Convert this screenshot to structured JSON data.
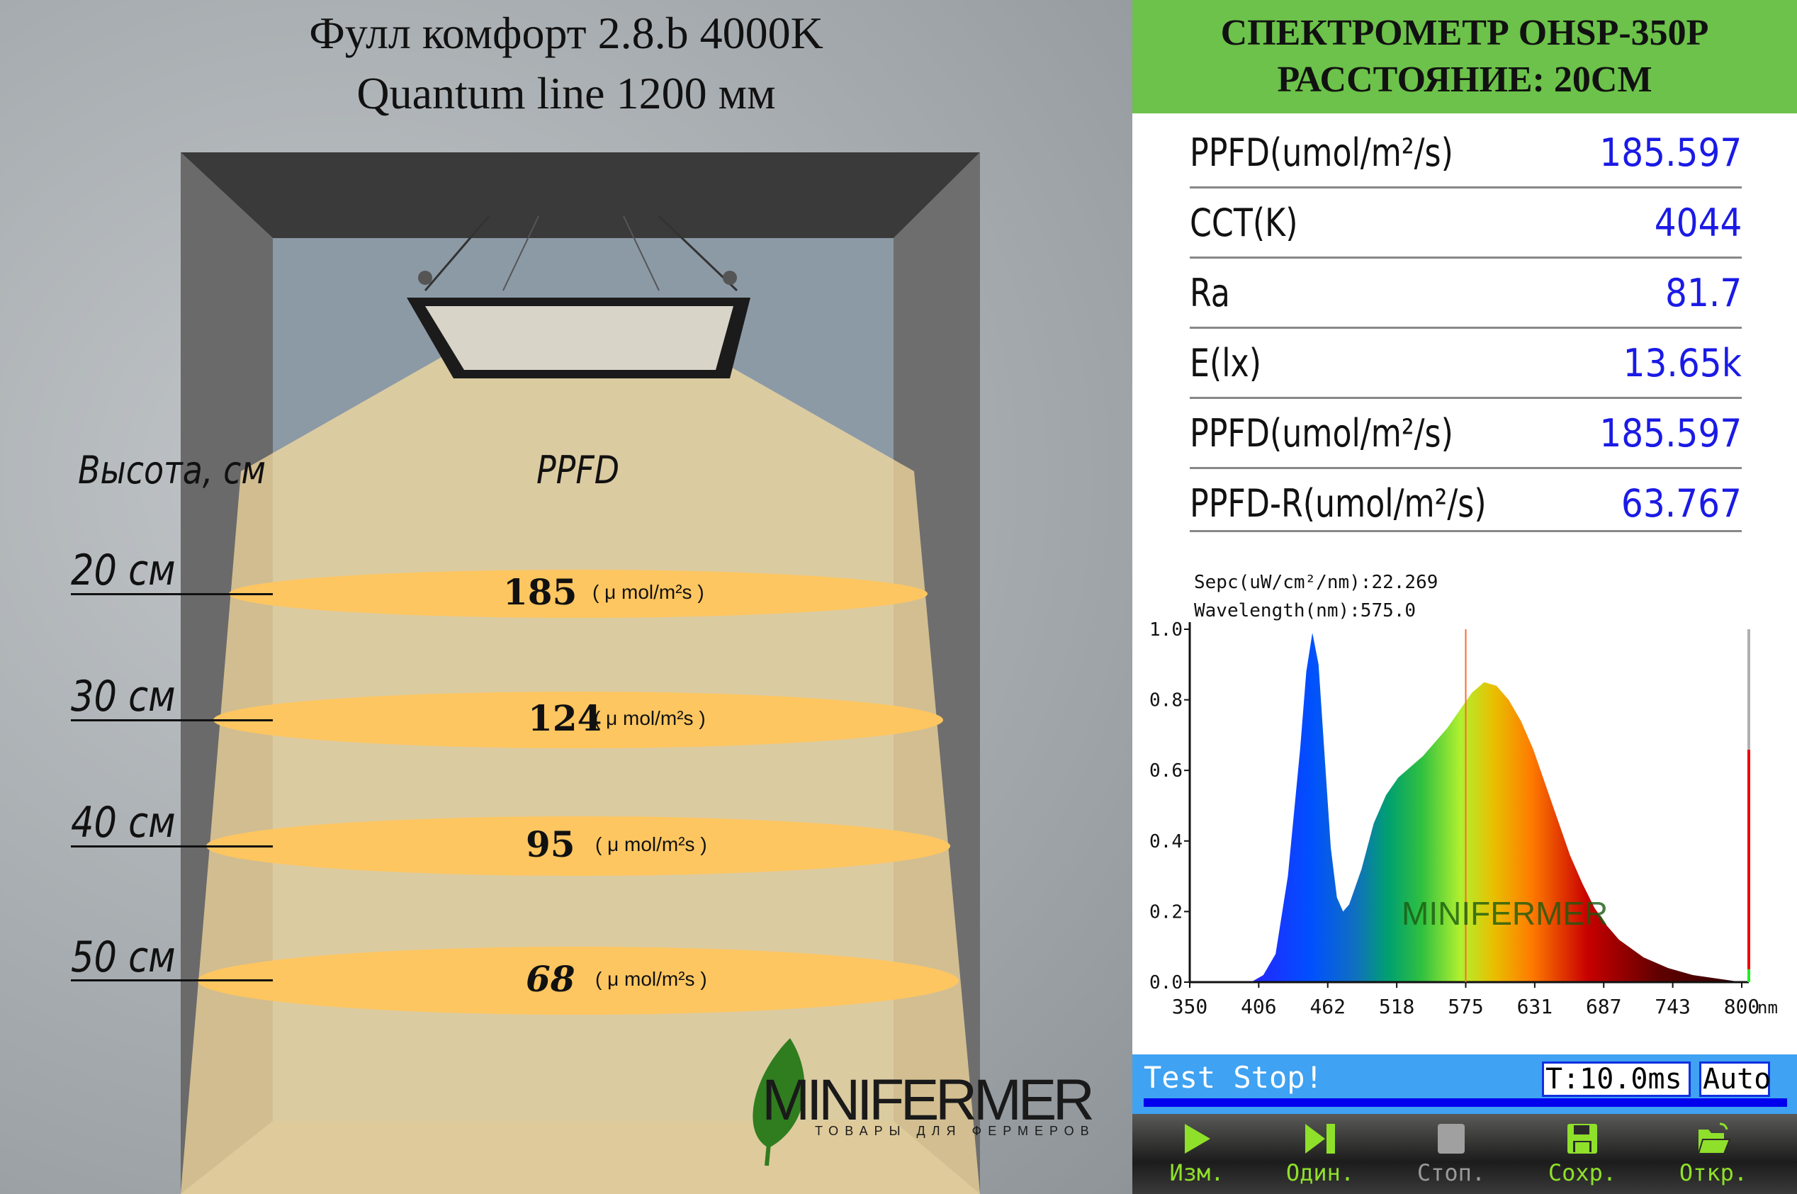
{
  "left": {
    "title_line1": "Фулл комфорт 2.8.b 4000K",
    "title_line2": "Quantum line 1200 мм",
    "height_header": "Высота, см",
    "ppfd_header": "PPFD",
    "levels": [
      {
        "height": "20 см",
        "value": "185",
        "unit": "( μ mol/m²s )"
      },
      {
        "height": "30 см",
        "value": "124",
        "unit": "( μ mol/m²s )"
      },
      {
        "height": "40 см",
        "value": "95",
        "unit": "( μ mol/m²s )"
      },
      {
        "height": "50 см",
        "value": "68",
        "unit": "( μ mol/m²s )"
      }
    ],
    "logo": {
      "name": "MINIFERMER",
      "tagline": "ТОВАРЫ ДЛЯ ФЕРМЕРОВ"
    }
  },
  "right": {
    "header_line1": "СПЕКТРОМЕТР OHSP-350P",
    "header_line2": "РАССТОЯНИЕ: 20СМ",
    "readings": [
      {
        "label": "PPFD(umol/m²/s)",
        "value": "185.597"
      },
      {
        "label": "CCT(K)",
        "value": "4044"
      },
      {
        "label": "Ra",
        "value": "81.7"
      },
      {
        "label": "E(lx)",
        "value": "13.65k"
      },
      {
        "label": "PPFD(umol/m²/s)",
        "value": "185.597"
      },
      {
        "label": "PPFD-R(umol/m²/s)",
        "value": "63.767"
      }
    ],
    "status": {
      "text": "Test Stop!",
      "integration": "T:10.0ms",
      "mode": "Auto"
    },
    "toolbar": [
      {
        "icon": "play-icon",
        "label": "Изм.",
        "enabled": true
      },
      {
        "icon": "step-icon",
        "label": "Один.",
        "enabled": true
      },
      {
        "icon": "stop-icon",
        "label": "Стоп.",
        "enabled": false
      },
      {
        "icon": "save-icon",
        "label": "Сохр.",
        "enabled": true
      },
      {
        "icon": "open-folder-icon",
        "label": "Откр.",
        "enabled": true
      }
    ],
    "colors": {
      "header": "#6cc24a",
      "value": "#1a1ae6",
      "status": "#3fa2f2",
      "button": "#8fe02a"
    }
  },
  "chart_data": {
    "type": "area",
    "annotation_line1": "Sepc(uW/cm²/nm):22.269",
    "annotation_line2": "Wavelength(nm):575.0",
    "xunit": "nm",
    "xlim": [
      350,
      800
    ],
    "ylim": [
      0,
      1.0
    ],
    "xticks": [
      "350",
      "406",
      "462",
      "518",
      "575",
      "631",
      "687",
      "743",
      "800"
    ],
    "yticks": [
      "0.0",
      "0.2",
      "0.4",
      "0.6",
      "0.8",
      "1.0"
    ],
    "cursor_wavelength": 575.0,
    "x": [
      400,
      410,
      420,
      430,
      440,
      445,
      450,
      455,
      460,
      465,
      470,
      475,
      480,
      490,
      500,
      510,
      520,
      530,
      540,
      550,
      560,
      570,
      580,
      590,
      600,
      610,
      620,
      630,
      640,
      650,
      660,
      670,
      680,
      690,
      700,
      720,
      740,
      760,
      780,
      800
    ],
    "y": [
      0.0,
      0.02,
      0.08,
      0.3,
      0.66,
      0.88,
      0.99,
      0.9,
      0.64,
      0.38,
      0.24,
      0.2,
      0.22,
      0.32,
      0.45,
      0.53,
      0.58,
      0.61,
      0.64,
      0.68,
      0.72,
      0.77,
      0.82,
      0.85,
      0.84,
      0.8,
      0.74,
      0.66,
      0.56,
      0.46,
      0.36,
      0.28,
      0.21,
      0.16,
      0.12,
      0.07,
      0.04,
      0.02,
      0.01,
      0.0
    ],
    "grid": false
  }
}
